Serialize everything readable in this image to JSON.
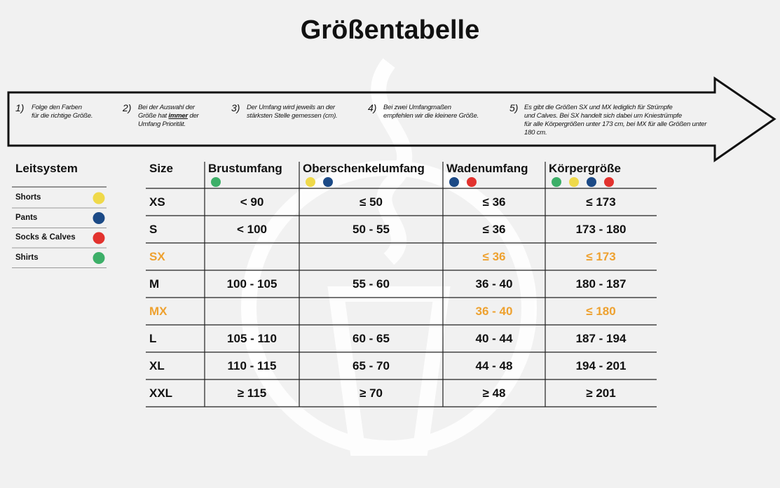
{
  "title": "Größentabelle",
  "steps": [
    {
      "number": "1)",
      "lines": [
        "Folge den Farben",
        "für die richtige Größe."
      ]
    },
    {
      "number": "2)",
      "lines": [
        "Bei der Auswahl der",
        {
          "before": "Größe hat ",
          "emphasis": "immer",
          "after": " der"
        },
        "Umfang Priorität."
      ]
    },
    {
      "number": "3)",
      "lines": [
        "Der Umfang wird jeweils an der",
        "stärksten Stelle gemessen (cm)."
      ]
    },
    {
      "number": "4)",
      "lines": [
        "Bei zwei Umfangmaßen",
        "empfehlen wir die kleinere Größe."
      ]
    },
    {
      "number": "5)",
      "lines": [
        "Es gibt die Größen SX und MX lediglich für Strümpfe",
        "und Calves. Bei SX handelt sich dabei um Kniestrümpfe",
        "für alle  Körpergrößen unter 173 cm, bei MX für alle Größen unter",
        "180 cm."
      ]
    }
  ],
  "legend": {
    "title": "Leitsystem",
    "items": [
      {
        "label": "Shorts",
        "color": "#efd94a"
      },
      {
        "label": "Pants",
        "color": "#1c4a86"
      },
      {
        "label": "Socks & Calves",
        "color": "#e2322e"
      },
      {
        "label": "Shirts",
        "color": "#3daf68"
      }
    ]
  },
  "table": {
    "header": [
      {
        "label": "Size",
        "dots": []
      },
      {
        "label": "Brustumfang",
        "dots": [
          "#3daf68"
        ]
      },
      {
        "label": "Oberschenkelumfang",
        "dots": [
          "#efd94a",
          "#1c4a86"
        ]
      },
      {
        "label": "Wadenumfang",
        "dots": [
          "#1c4a86",
          "#e2322e"
        ]
      },
      {
        "label": "Körpergröße",
        "dots": [
          "#3daf68",
          "#efd94a",
          "#1c4a86",
          "#e2322e"
        ]
      }
    ],
    "highlight_color": "#eea12f",
    "rows": [
      {
        "cells": [
          "XS",
          "< 90",
          "≤ 50",
          "≤ 36",
          "≤ 173"
        ],
        "highlight": false
      },
      {
        "cells": [
          "S",
          "< 100",
          "50 - 55",
          "≤ 36",
          "173 - 180"
        ],
        "highlight": false
      },
      {
        "cells": [
          "SX",
          null,
          null,
          "≤ 36",
          "≤ 173"
        ],
        "highlight": true
      },
      {
        "cells": [
          "M",
          "100 - 105",
          "55 - 60",
          "36 - 40",
          "180 - 187"
        ],
        "highlight": false
      },
      {
        "cells": [
          "MX",
          null,
          null,
          "36 - 40",
          "≤ 180"
        ],
        "highlight": true
      },
      {
        "cells": [
          "L",
          "105 - 110",
          "60 - 65",
          "40 - 44",
          "187 - 194"
        ],
        "highlight": false
      },
      {
        "cells": [
          "XL",
          "110 - 115",
          "65 - 70",
          "44 - 48",
          "194 - 201"
        ],
        "highlight": false
      },
      {
        "cells": [
          "XXL",
          "≥ 115",
          "≥ 70",
          "≥ 48",
          "≥ 201"
        ],
        "highlight": false
      }
    ]
  }
}
